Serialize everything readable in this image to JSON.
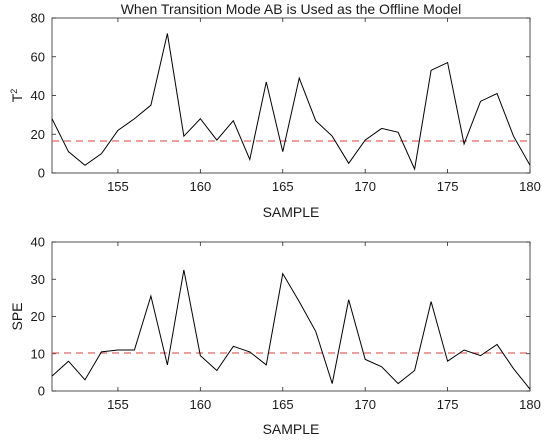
{
  "chart_data": [
    {
      "type": "line",
      "title": "When Transition Mode AB is Used as the Offline Model",
      "xlabel": "SAMPLE",
      "ylabel": "T",
      "ylabel_superscript": "2",
      "xlim": [
        151,
        180
      ],
      "ylim": [
        0,
        80
      ],
      "xticks": [
        155,
        160,
        165,
        170,
        175,
        180
      ],
      "yticks": [
        0,
        20,
        40,
        60,
        80
      ],
      "grid": false,
      "x": [
        151,
        152,
        153,
        154,
        155,
        156,
        157,
        158,
        159,
        160,
        161,
        162,
        163,
        164,
        165,
        166,
        167,
        168,
        169,
        170,
        171,
        172,
        173,
        174,
        175,
        176,
        177,
        178,
        179,
        180
      ],
      "series": [
        {
          "color": "#000000",
          "style": "solid",
          "values": [
            28,
            11,
            4,
            10,
            22,
            28,
            35,
            72,
            19,
            28,
            17,
            27,
            7,
            47,
            11,
            49,
            27,
            19,
            5,
            17,
            23,
            21,
            2,
            53,
            57,
            15,
            37,
            41,
            19,
            4
          ]
        }
      ],
      "threshold": {
        "value": 16.5,
        "color": "#e06666",
        "style": "dashed"
      }
    },
    {
      "type": "line",
      "title": "",
      "xlabel": "SAMPLE",
      "ylabel": "SPE",
      "xlim": [
        151,
        180
      ],
      "ylim": [
        0,
        40
      ],
      "xticks": [
        155,
        160,
        165,
        170,
        175,
        180
      ],
      "yticks": [
        0,
        10,
        20,
        30,
        40
      ],
      "grid": false,
      "x": [
        151,
        152,
        153,
        154,
        155,
        156,
        157,
        158,
        159,
        160,
        161,
        162,
        163,
        164,
        165,
        166,
        167,
        168,
        169,
        170,
        171,
        172,
        173,
        174,
        175,
        176,
        177,
        178,
        179,
        180
      ],
      "series": [
        {
          "color": "#000000",
          "style": "solid",
          "values": [
            4,
            8,
            3,
            10.5,
            11,
            11,
            25.5,
            7,
            32.5,
            9.5,
            5.5,
            12,
            10.5,
            7,
            31.5,
            24,
            16,
            2,
            24.5,
            8.5,
            6.5,
            2,
            5.5,
            24,
            8,
            11,
            9.5,
            12.5,
            6,
            0.5
          ]
        }
      ],
      "threshold": {
        "value": 10.2,
        "color": "#e06666",
        "style": "dashed"
      }
    }
  ]
}
